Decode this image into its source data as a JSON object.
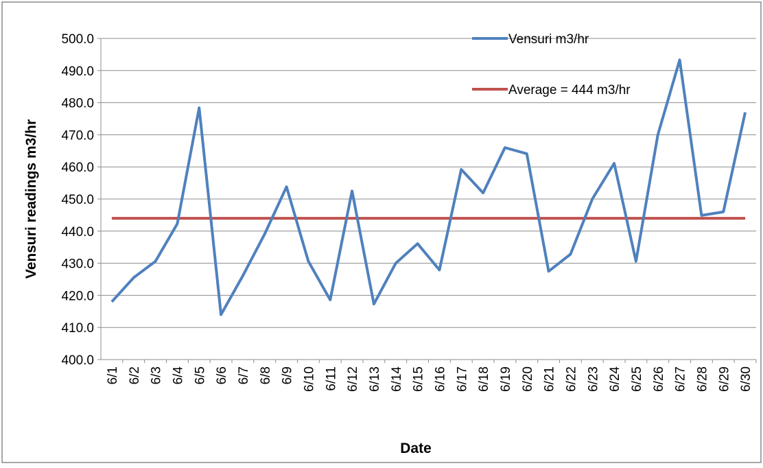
{
  "chart_data": {
    "type": "line",
    "x_label": "Date",
    "y_label": "Vensuri readings m3/hr",
    "categories": [
      "6/1",
      "6/2",
      "6/3",
      "6/4",
      "6/5",
      "6/6",
      "6/7",
      "6/8",
      "6/9",
      "6/10",
      "6/11",
      "6/12",
      "6/13",
      "6/14",
      "6/15",
      "6/16",
      "6/17",
      "6/18",
      "6/19",
      "6/20",
      "6/21",
      "6/22",
      "6/23",
      "6/24",
      "6/25",
      "6/26",
      "6/27",
      "6/28",
      "6/29",
      "6/30"
    ],
    "series": [
      {
        "name": "Vensuri m3/hr",
        "color": "#4f81bd",
        "values": [
          418.0,
          425.5,
          430.6,
          442.3,
          478.4,
          414.0,
          426.1,
          439.1,
          453.8,
          430.6,
          418.6,
          452.5,
          417.3,
          430.0,
          436.1,
          427.9,
          459.2,
          451.9,
          466.0,
          464.1,
          427.5,
          432.8,
          450.0,
          461.1,
          430.6,
          470.0,
          493.3,
          444.9,
          446.0,
          477.0
        ]
      },
      {
        "name": "Average = 444  m3/hr",
        "color": "#c0504d",
        "values": [
          444,
          444,
          444,
          444,
          444,
          444,
          444,
          444,
          444,
          444,
          444,
          444,
          444,
          444,
          444,
          444,
          444,
          444,
          444,
          444,
          444,
          444,
          444,
          444,
          444,
          444,
          444,
          444,
          444,
          444
        ]
      }
    ],
    "ylim": [
      400,
      500
    ],
    "yticks": [
      {
        "value": 400,
        "label": "400.0"
      },
      {
        "value": 410,
        "label": "410.0"
      },
      {
        "value": 420,
        "label": "420.0"
      },
      {
        "value": 430,
        "label": "430.0"
      },
      {
        "value": 440,
        "label": "440.0"
      },
      {
        "value": 450,
        "label": "450.0"
      },
      {
        "value": 460,
        "label": "460.0"
      },
      {
        "value": 470,
        "label": "470.0"
      },
      {
        "value": 480,
        "label": "480.0"
      },
      {
        "value": 490,
        "label": "490.0"
      },
      {
        "value": 500,
        "label": "500.0"
      }
    ],
    "grid": true,
    "legend": "top-right"
  }
}
